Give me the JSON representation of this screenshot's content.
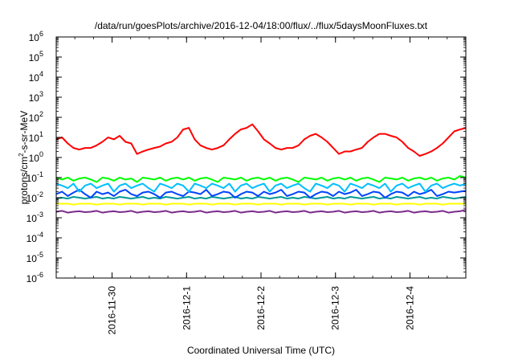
{
  "chart_data": {
    "type": "line",
    "title": "/data/run/goesPlots/archive/2016-12-04/18:00/flux/../flux/5daysMoonFluxes.txt",
    "xlabel": "Coordinated Universal Time (UTC)",
    "ylabel": {
      "prefix": "protons/cm",
      "sup": "2",
      "suffix": "-s-sr-MeV"
    },
    "y_scale": "log",
    "y_range": [
      1e-06,
      1000000.0
    ],
    "y_ticks": [
      {
        "value": 1e-06,
        "base": "10",
        "exp": "-6"
      },
      {
        "value": 1e-05,
        "base": "10",
        "exp": "-5"
      },
      {
        "value": 0.0001,
        "base": "10",
        "exp": "-4"
      },
      {
        "value": 0.001,
        "base": "10",
        "exp": "-3"
      },
      {
        "value": 0.01,
        "base": "10",
        "exp": "-2"
      },
      {
        "value": 0.1,
        "base": "10",
        "exp": "-1"
      },
      {
        "value": 1,
        "base": "10",
        "exp": "0"
      },
      {
        "value": 10,
        "base": "10",
        "exp": "1"
      },
      {
        "value": 100,
        "base": "10",
        "exp": "2"
      },
      {
        "value": 1000,
        "base": "10",
        "exp": "3"
      },
      {
        "value": 10000,
        "base": "10",
        "exp": "4"
      },
      {
        "value": 100000,
        "base": "10",
        "exp": "5"
      },
      {
        "value": 1000000,
        "base": "10",
        "exp": "6"
      }
    ],
    "x_range": [
      "2016-11-29 06:00",
      "2016-12-04 18:00"
    ],
    "x_ticks": [
      "2016-11-30",
      "2016-12-1",
      "2016-12-2",
      "2016-12-3",
      "2016-12-4"
    ],
    "x_tick_dates": [
      "2016-11-30",
      "2016-12-01",
      "2016-12-02",
      "2016-12-03",
      "2016-12-04"
    ],
    "grid": false,
    "legend": "none",
    "series": [
      {
        "color": "#ff0000",
        "x_start": "2016-11-29 06:00",
        "x_end": "2016-12-04 18:00",
        "values": [
          8,
          10,
          5,
          3,
          2.5,
          3,
          3,
          4,
          6,
          10,
          8,
          12,
          6,
          5,
          1.5,
          2,
          2.5,
          3,
          3.5,
          5,
          6,
          10,
          25,
          30,
          8,
          4,
          3,
          2.5,
          3,
          4,
          8,
          15,
          25,
          30,
          45,
          20,
          8,
          5,
          3,
          2.5,
          3,
          3,
          4,
          8,
          12,
          15,
          10,
          6,
          3,
          1.5,
          2,
          2,
          2.5,
          3,
          6,
          10,
          15,
          15,
          12,
          10,
          6,
          3,
          2,
          1.2,
          1.5,
          2,
          3,
          5,
          10,
          20,
          25,
          30
        ]
      },
      {
        "color": "#00ff00",
        "x_start": "2016-11-29 06:00",
        "x_end": "2016-12-04 18:00",
        "values": [
          0.1,
          0.08,
          0.1,
          0.07,
          0.09,
          0.1,
          0.08,
          0.06,
          0.1,
          0.09,
          0.07,
          0.1,
          0.08,
          0.09,
          0.06,
          0.1,
          0.09,
          0.08,
          0.1,
          0.07,
          0.09,
          0.1,
          0.08,
          0.1,
          0.07,
          0.09,
          0.1,
          0.08,
          0.06,
          0.1,
          0.09,
          0.08,
          0.1,
          0.07,
          0.09,
          0.1,
          0.08,
          0.1,
          0.07,
          0.09,
          0.1,
          0.08,
          0.06,
          0.1,
          0.09,
          0.08,
          0.1,
          0.07,
          0.09,
          0.1,
          0.08,
          0.1,
          0.07,
          0.09,
          0.1,
          0.08,
          0.06,
          0.1,
          0.09,
          0.08,
          0.1,
          0.07,
          0.09,
          0.1,
          0.08,
          0.1,
          0.07,
          0.09,
          0.1,
          0.08,
          0.12,
          0.1
        ]
      },
      {
        "color": "#00bfff",
        "x_start": "2016-11-29 06:00",
        "x_end": "2016-12-04 18:00",
        "values": [
          0.05,
          0.04,
          0.03,
          0.05,
          0.02,
          0.04,
          0.05,
          0.03,
          0.04,
          0.05,
          0.02,
          0.04,
          0.05,
          0.03,
          0.04,
          0.05,
          0.03,
          0.02,
          0.05,
          0.04,
          0.03,
          0.05,
          0.04,
          0.02,
          0.05,
          0.04,
          0.03,
          0.05,
          0.04,
          0.03,
          0.05,
          0.02,
          0.04,
          0.05,
          0.03,
          0.04,
          0.05,
          0.02,
          0.04,
          0.05,
          0.03,
          0.04,
          0.05,
          0.03,
          0.02,
          0.05,
          0.04,
          0.03,
          0.05,
          0.04,
          0.02,
          0.05,
          0.04,
          0.03,
          0.05,
          0.04,
          0.03,
          0.05,
          0.02,
          0.04,
          0.05,
          0.03,
          0.04,
          0.05,
          0.02,
          0.04,
          0.05,
          0.03,
          0.04,
          0.05,
          0.04,
          0.05
        ]
      },
      {
        "color": "#0044ff",
        "x_start": "2016-11-29 06:00",
        "x_end": "2016-12-04 18:00",
        "values": [
          0.015,
          0.02,
          0.012,
          0.018,
          0.025,
          0.015,
          0.01,
          0.02,
          0.015,
          0.018,
          0.012,
          0.02,
          0.025,
          0.015,
          0.012,
          0.018,
          0.02,
          0.015,
          0.01,
          0.018,
          0.02,
          0.015,
          0.012,
          0.02,
          0.018,
          0.015,
          0.025,
          0.012,
          0.015,
          0.02,
          0.018,
          0.01,
          0.015,
          0.02,
          0.018,
          0.012,
          0.02,
          0.015,
          0.018,
          0.025,
          0.012,
          0.015,
          0.02,
          0.018,
          0.01,
          0.015,
          0.02,
          0.018,
          0.012,
          0.02,
          0.015,
          0.018,
          0.025,
          0.012,
          0.015,
          0.02,
          0.018,
          0.01,
          0.015,
          0.02,
          0.018,
          0.012,
          0.02,
          0.015,
          0.018,
          0.025,
          0.012,
          0.015,
          0.02,
          0.018,
          0.02,
          0.022
        ]
      },
      {
        "color": "#009999",
        "x_start": "2016-11-29 06:00",
        "x_end": "2016-12-04 18:00",
        "values": [
          0.009,
          0.01,
          0.009,
          0.011,
          0.01,
          0.009,
          0.01,
          0.011,
          0.009,
          0.01,
          0.009,
          0.011,
          0.01,
          0.009,
          0.01,
          0.011,
          0.009,
          0.01,
          0.009,
          0.011,
          0.01,
          0.009,
          0.01,
          0.011,
          0.009,
          0.01,
          0.009,
          0.011,
          0.01,
          0.009,
          0.01,
          0.011,
          0.009,
          0.01,
          0.009,
          0.011,
          0.01,
          0.009,
          0.01,
          0.011,
          0.009,
          0.01,
          0.009,
          0.011,
          0.01,
          0.009,
          0.01,
          0.011,
          0.009,
          0.01,
          0.009,
          0.011,
          0.01,
          0.009,
          0.01,
          0.011,
          0.009,
          0.01,
          0.009,
          0.011,
          0.01,
          0.009,
          0.01,
          0.011,
          0.009,
          0.01,
          0.009,
          0.011,
          0.01,
          0.009,
          0.01,
          0.011
        ]
      },
      {
        "color": "#ffff00",
        "x_start": "2016-11-29 06:00",
        "x_end": "2016-12-04 18:00",
        "values": [
          0.005,
          0.005,
          0.005,
          0.0045,
          0.005,
          0.005,
          0.005,
          0.0045,
          0.005,
          0.005,
          0.005,
          0.0045,
          0.005,
          0.005,
          0.005,
          0.0045,
          0.005,
          0.005,
          0.005,
          0.0045,
          0.005,
          0.005,
          0.005,
          0.0045,
          0.005,
          0.005,
          0.005,
          0.0045,
          0.005,
          0.005,
          0.005,
          0.0045,
          0.005,
          0.005,
          0.005,
          0.0045,
          0.005,
          0.005,
          0.005,
          0.0045,
          0.005,
          0.005,
          0.005,
          0.0045,
          0.005,
          0.005,
          0.005,
          0.0045,
          0.005,
          0.005,
          0.005,
          0.0045,
          0.005,
          0.005,
          0.005,
          0.0045,
          0.005,
          0.005,
          0.005,
          0.0045,
          0.005,
          0.005,
          0.005,
          0.0045,
          0.005,
          0.005,
          0.005,
          0.0045,
          0.005,
          0.005,
          0.005,
          0.005
        ]
      },
      {
        "color": "#7b2b8c",
        "x_start": "2016-11-29 06:00",
        "x_end": "2016-12-04 18:00",
        "values": [
          0.002,
          0.0022,
          0.0018,
          0.002,
          0.0021,
          0.0019,
          0.002,
          0.0022,
          0.0018,
          0.002,
          0.0021,
          0.0019,
          0.002,
          0.0022,
          0.0018,
          0.002,
          0.0021,
          0.0019,
          0.002,
          0.0022,
          0.0018,
          0.002,
          0.0021,
          0.0019,
          0.002,
          0.0022,
          0.0018,
          0.002,
          0.0021,
          0.0019,
          0.002,
          0.0022,
          0.0018,
          0.002,
          0.0021,
          0.0019,
          0.002,
          0.0022,
          0.0018,
          0.002,
          0.0021,
          0.0019,
          0.002,
          0.0022,
          0.0018,
          0.002,
          0.0021,
          0.0019,
          0.002,
          0.0022,
          0.0018,
          0.002,
          0.0021,
          0.0019,
          0.002,
          0.0022,
          0.0018,
          0.002,
          0.0021,
          0.0019,
          0.002,
          0.0022,
          0.0018,
          0.002,
          0.0021,
          0.0019,
          0.002,
          0.0022,
          0.0018,
          0.002,
          0.0021,
          0.0025
        ]
      }
    ]
  }
}
